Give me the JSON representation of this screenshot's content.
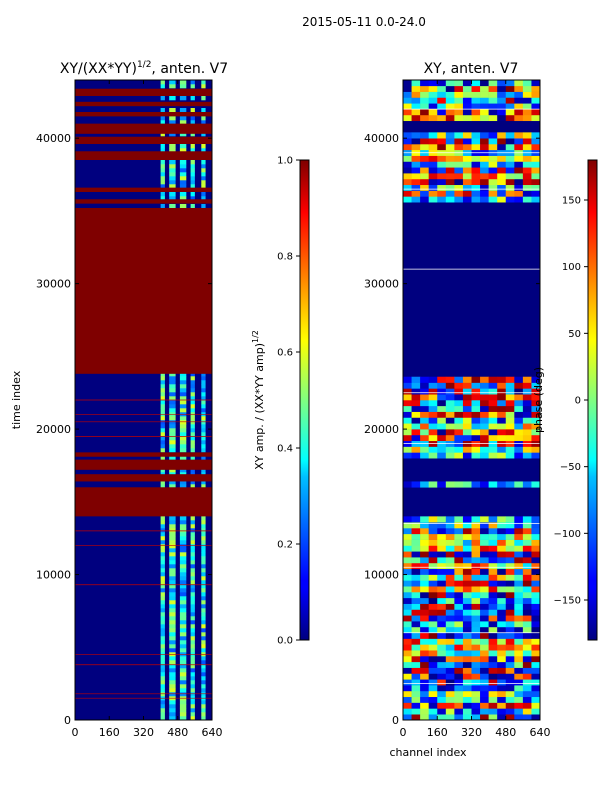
{
  "figure": {
    "suptitle": "2015-05-11 0.0-24.0"
  },
  "chart_data": [
    {
      "type": "heatmap",
      "title": "XY/(XX*YY)",
      "title_exponent": "1/2",
      "title_suffix": ", anten. V7",
      "ylabel": "time index",
      "xlabel": "",
      "x_range": [
        0,
        640
      ],
      "y_range": [
        0,
        44000
      ],
      "x_ticks": [
        0,
        160,
        320,
        480,
        640
      ],
      "y_ticks": [
        0,
        10000,
        20000,
        30000,
        40000
      ],
      "colorbar": {
        "label": "XY amp. / (XX*YY amp)",
        "label_exponent": "1/2",
        "range": [
          0.0,
          1.0
        ],
        "ticks": [
          "0.0",
          "0.2",
          "0.4",
          "0.6",
          "0.8",
          "1.0"
        ]
      },
      "saturated_bands": [
        [
          14000,
          16000
        ],
        [
          16400,
          16900
        ],
        [
          17200,
          17900
        ],
        [
          18100,
          18400
        ],
        [
          23800,
          35200
        ],
        [
          35500,
          35800
        ],
        [
          36300,
          36600
        ],
        [
          38500,
          39100
        ],
        [
          39600,
          40100
        ],
        [
          40300,
          41000
        ],
        [
          41500,
          41800
        ],
        [
          42200,
          42500
        ],
        [
          42900,
          43400
        ]
      ],
      "active_channel_bands": [
        [
          400,
          420
        ],
        [
          440,
          470
        ],
        [
          490,
          520
        ],
        [
          540,
          560
        ],
        [
          590,
          610
        ]
      ]
    },
    {
      "type": "heatmap",
      "title": "XY, anten. V7",
      "ylabel": "",
      "xlabel": "channel index",
      "x_range": [
        0,
        640
      ],
      "y_range": [
        0,
        44000
      ],
      "x_ticks": [
        0,
        160,
        320,
        480,
        640
      ],
      "y_ticks": [
        0,
        10000,
        20000,
        30000,
        40000
      ],
      "colorbar": {
        "label": "phase (deg)",
        "range": [
          -180,
          180
        ],
        "ticks": [
          "150",
          "100",
          "50",
          "0",
          "−50",
          "−100",
          "−150"
        ]
      },
      "flat_bands": [
        [
          14200,
          16000
        ],
        [
          16300,
          17900
        ],
        [
          23800,
          35500
        ],
        [
          40500,
          41200
        ]
      ]
    }
  ],
  "colors": {
    "jet_dark_blue": "#00007f",
    "jet_dark_red": "#7f0000"
  }
}
